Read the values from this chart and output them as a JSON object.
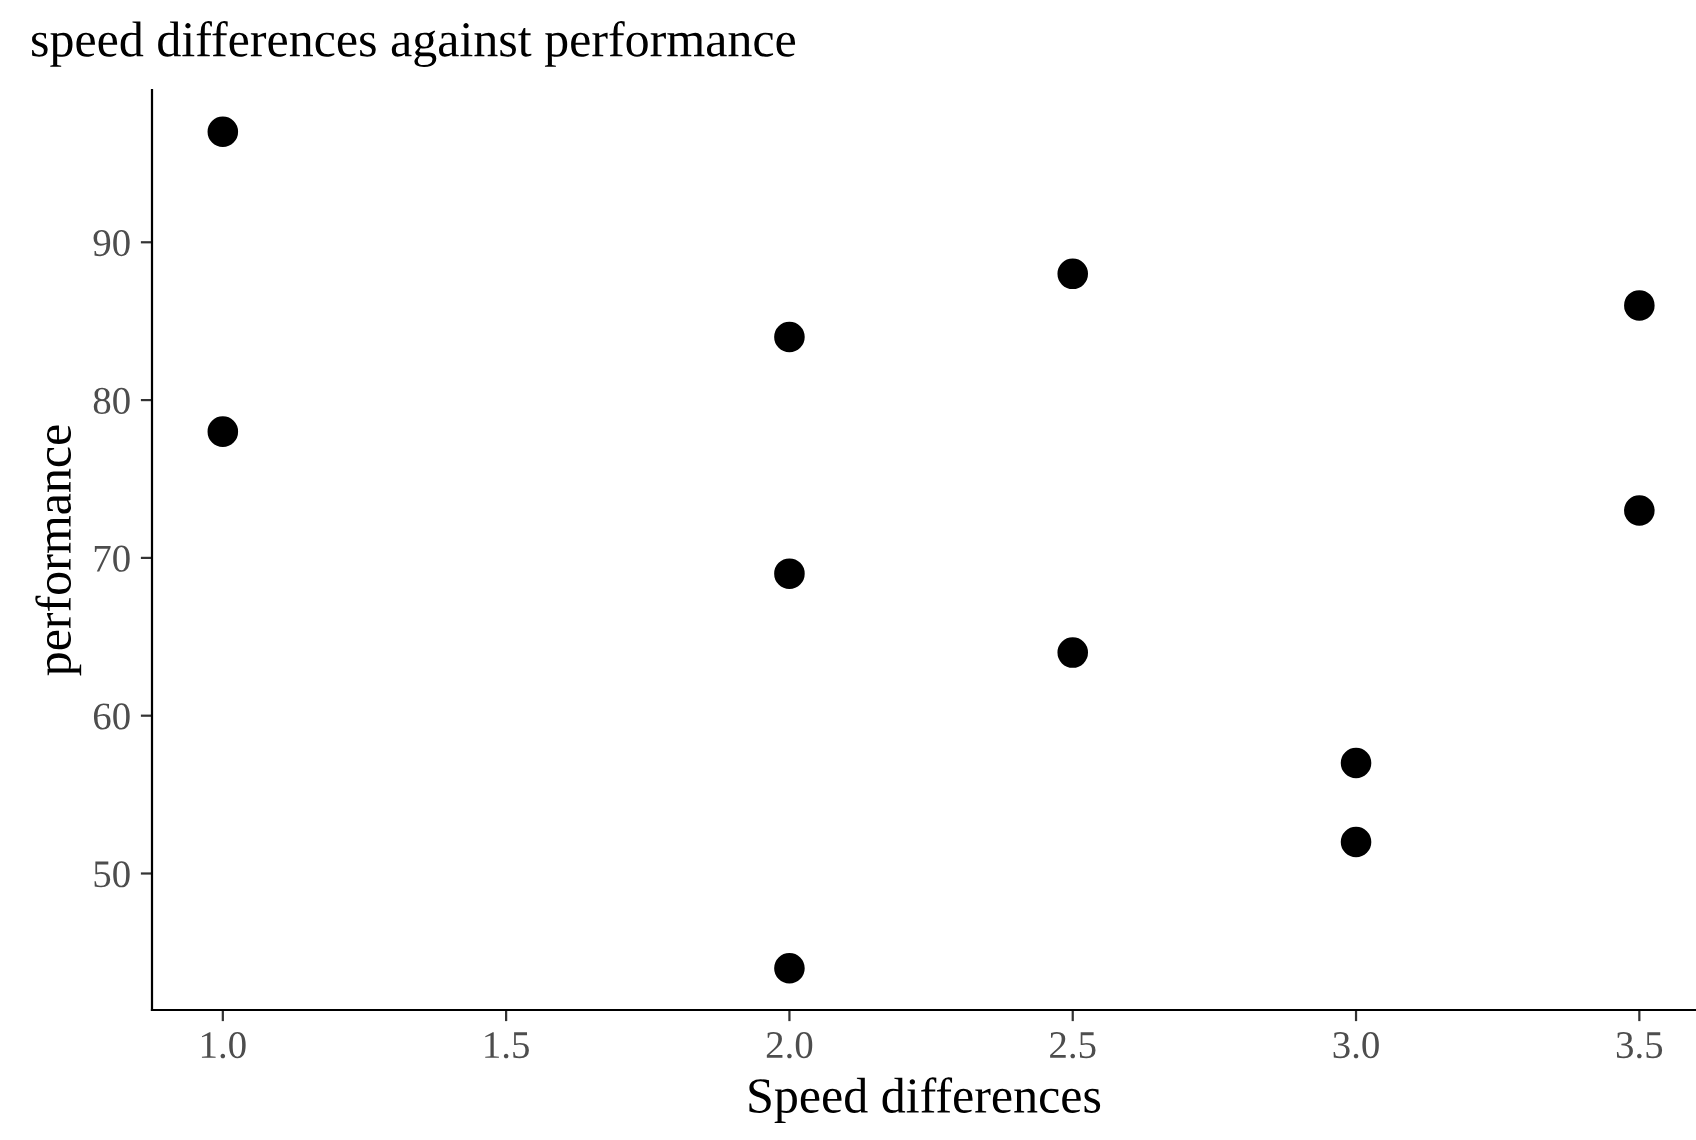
{
  "chart_data": {
    "type": "scatter",
    "title": "speed differences against performance",
    "xlabel": "Speed differences",
    "ylabel": "performance",
    "x": [
      1.0,
      1.0,
      2.0,
      2.0,
      2.0,
      2.5,
      2.5,
      3.0,
      3.0,
      3.5,
      3.5
    ],
    "series": [
      {
        "color": "#000000",
        "values": [
          97,
          78,
          84,
          69,
          44,
          88,
          64,
          57,
          52,
          86,
          73
        ]
      }
    ],
    "xlim": [
      0.875,
      3.6
    ],
    "xticks": [
      {
        "value": 1.0,
        "label": "1.0"
      },
      {
        "value": 1.5,
        "label": "1.5"
      },
      {
        "value": 2.0,
        "label": "2.0"
      },
      {
        "value": 2.5,
        "label": "2.5"
      },
      {
        "value": 3.0,
        "label": "3.0"
      },
      {
        "value": 3.5,
        "label": "3.5"
      }
    ],
    "ylim": [
      41.35,
      99.65
    ],
    "yticks": [
      50,
      60,
      70,
      80,
      90
    ],
    "grid": false,
    "marker": "circle"
  }
}
